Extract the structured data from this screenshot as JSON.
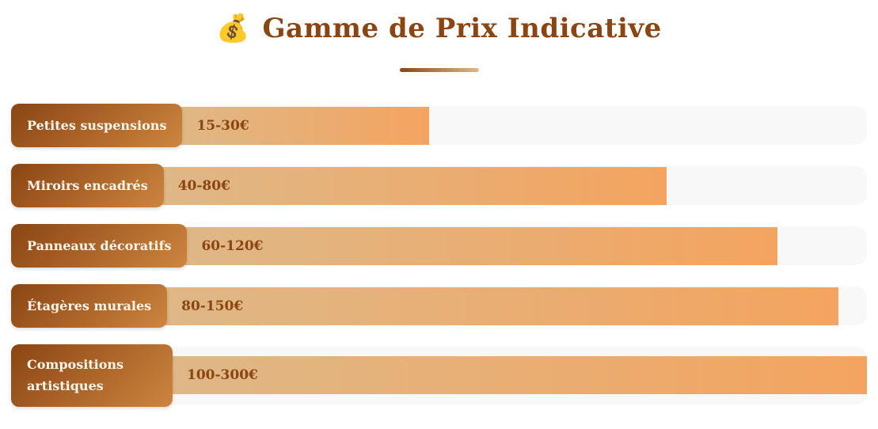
{
  "header": {
    "emoji": "💰",
    "title": "Gamme de Prix Indicative"
  },
  "colors": {
    "title_text": "#8B4513",
    "label_gradient_start": "#8B4513",
    "label_gradient_end": "#CD853F",
    "label_text": "#fdf6ec",
    "bar_gradient_start": "#DEB887",
    "bar_gradient_end": "#F4A460",
    "bar_text": "#8B4513",
    "track_background": "#f8f8f8",
    "divider_gradient_start": "#8B4513",
    "divider_gradient_end": "#DEB887"
  },
  "chart_data": {
    "type": "bar",
    "orientation": "horizontal",
    "title": "Gamme de Prix Indicative",
    "unit": "EUR (€)",
    "legend": false,
    "grid": false,
    "categories": [
      "Petites suspensions",
      "Miroirs encadrés",
      "Panneaux décoratifs",
      "Étagères murales",
      "Compositions artistiques"
    ],
    "rows": [
      {
        "label": "Petites suspensions",
        "price": "15-30€",
        "min": 15,
        "max": 30,
        "width_pct": 37
      },
      {
        "label": "Miroirs encadrés",
        "price": "40-80€",
        "min": 40,
        "max": 80,
        "width_pct": 72
      },
      {
        "label": "Panneaux décoratifs",
        "price": "60-120€",
        "min": 60,
        "max": 120,
        "width_pct": 87
      },
      {
        "label": "Étagères murales",
        "price": "80-150€",
        "min": 80,
        "max": 150,
        "width_pct": 96
      },
      {
        "label": "Compositions artistiques",
        "price": "100-300€",
        "min": 100,
        "max": 300,
        "width_pct": 100
      }
    ]
  }
}
